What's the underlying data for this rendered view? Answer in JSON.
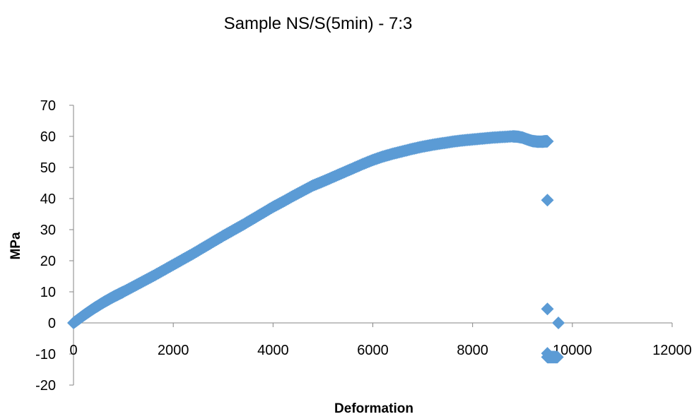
{
  "chart_data": {
    "type": "scatter",
    "title": "Sample NS/S(5min) - 7:3",
    "xlabel": "Deformation",
    "ylabel": "MPa",
    "xlim": [
      0,
      12000
    ],
    "ylim": [
      -20,
      70
    ],
    "xticks": [
      0,
      2000,
      4000,
      6000,
      8000,
      10000,
      12000
    ],
    "yticks": [
      -20,
      -10,
      0,
      10,
      20,
      30,
      40,
      50,
      60,
      70
    ],
    "x_tick_labels": [
      "0",
      "2000",
      "4000",
      "6000",
      "8000",
      "10000",
      "12000"
    ],
    "y_tick_labels": [
      "-20",
      "-10",
      "0",
      "10",
      "20",
      "30",
      "40",
      "50",
      "60",
      "70"
    ],
    "grid": false,
    "legend": "none",
    "marker": "diamond",
    "marker_color": "#5B9BD5",
    "series": [
      {
        "x": [
          0,
          100,
          200,
          300,
          400,
          500,
          600,
          700,
          800,
          900,
          1000,
          1200,
          1400,
          1600,
          1800,
          2000,
          2200,
          2400,
          2600,
          2800,
          3000,
          3200,
          3400,
          3600,
          3800,
          4000,
          4200,
          4400,
          4600,
          4800,
          5000,
          5200,
          5400,
          5600,
          5800,
          6000,
          6200,
          6400,
          6600,
          6800,
          7000,
          7200,
          7400,
          7600,
          7800,
          8000,
          8200,
          8400,
          8600,
          8800,
          8900,
          9000,
          9100,
          9200,
          9300,
          9400,
          9450,
          9500,
          9500,
          9500,
          9500,
          9500,
          9550,
          9600,
          9650,
          9700,
          9720
        ],
        "y": [
          0,
          1.2,
          2.4,
          3.5,
          4.6,
          5.6,
          6.6,
          7.5,
          8.4,
          9.2,
          10.0,
          11.7,
          13.4,
          15.1,
          16.9,
          18.7,
          20.5,
          22.3,
          24.2,
          26.1,
          28.0,
          29.8,
          31.6,
          33.5,
          35.4,
          37.3,
          39.0,
          40.8,
          42.5,
          44.2,
          45.5,
          46.9,
          48.3,
          49.7,
          51.1,
          52.4,
          53.5,
          54.4,
          55.2,
          56.0,
          56.7,
          57.3,
          57.8,
          58.3,
          58.7,
          59.0,
          59.3,
          59.6,
          59.8,
          60.0,
          59.9,
          59.6,
          59.0,
          58.5,
          58.3,
          58.3,
          58.4,
          58.4,
          39.5,
          4.5,
          -9.8,
          -11.0,
          -11.0,
          -11.0,
          -11.0,
          -11.0,
          0
        ]
      }
    ]
  }
}
